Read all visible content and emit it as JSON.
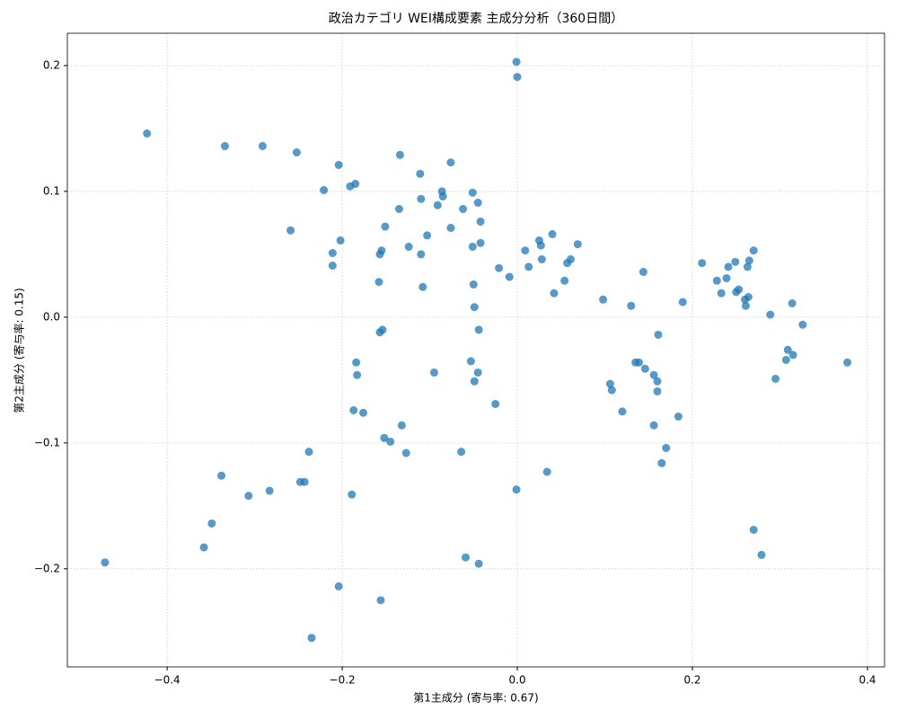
{
  "chart_data": {
    "type": "scatter",
    "title": "政治カテゴリ WEI構成要素 主成分分析（360日間）",
    "x_label": "第1主成分 (寄与率: 0.67)",
    "y_label": "第2主成分 (寄与率: 0.15)",
    "color": "#1f77b4",
    "grid": true,
    "xlim": [
      -0.514,
      0.4195
    ],
    "ylim": [
      -0.278,
      0.2257
    ],
    "xticks": [
      {
        "value": -0.4,
        "label": "−0.4"
      },
      {
        "value": -0.2,
        "label": "−0.2"
      },
      {
        "value": 0,
        "label": "0.0"
      },
      {
        "value": 0.2,
        "label": "0.2"
      },
      {
        "value": 0.4,
        "label": "0.4"
      }
    ],
    "yticks": [
      {
        "value": -0.2,
        "label": "−0.2"
      },
      {
        "value": -0.1,
        "label": "−0.1"
      },
      {
        "value": 0,
        "label": "0.0"
      },
      {
        "value": 0.1,
        "label": "0.1"
      },
      {
        "value": 0.2,
        "label": "0.2"
      }
    ],
    "x": [
      -0.001,
      0.0,
      -0.423,
      -0.334,
      -0.291,
      -0.252,
      -0.134,
      -0.204,
      -0.076,
      -0.111,
      -0.185,
      -0.191,
      -0.221,
      -0.086,
      -0.051,
      -0.11,
      -0.085,
      -0.045,
      -0.091,
      -0.135,
      -0.062,
      -0.042,
      -0.151,
      -0.076,
      -0.259,
      -0.103,
      -0.202,
      -0.042,
      -0.124,
      -0.051,
      -0.155,
      -0.211,
      -0.157,
      -0.11,
      -0.211,
      -0.021,
      -0.009,
      -0.158,
      -0.108,
      -0.05,
      -0.049,
      -0.154,
      -0.157,
      -0.044,
      -0.184,
      -0.053,
      -0.183,
      -0.095,
      -0.045,
      -0.049,
      -0.187,
      -0.176,
      -0.025,
      -0.132,
      -0.152,
      -0.145,
      -0.238,
      -0.127,
      -0.064,
      -0.338,
      0.034,
      -0.283,
      -0.248,
      -0.243,
      -0.307,
      -0.189,
      -0.001,
      -0.349,
      -0.358,
      -0.471,
      -0.059,
      -0.044,
      -0.204,
      -0.156,
      -0.235,
      0.009,
      0.025,
      0.027,
      0.04,
      0.069,
      0.028,
      0.013,
      0.061,
      0.057,
      0.054,
      0.042,
      0.144,
      0.098,
      0.13,
      0.189,
      0.161,
      0.211,
      0.241,
      0.249,
      0.265,
      0.27,
      0.263,
      0.239,
      0.228,
      0.253,
      0.25,
      0.233,
      0.264,
      0.26,
      0.261,
      0.289,
      0.314,
      0.326,
      0.309,
      0.315,
      0.307,
      0.377,
      0.295,
      0.139,
      0.135,
      0.146,
      0.156,
      0.16,
      0.106,
      0.108,
      0.16,
      0.12,
      0.184,
      0.156,
      0.17,
      0.165,
      0.27,
      0.279
    ],
    "values": [
      0.203,
      0.191,
      0.146,
      0.136,
      0.136,
      0.131,
      0.129,
      0.121,
      0.123,
      0.114,
      0.106,
      0.104,
      0.101,
      0.1,
      0.099,
      0.094,
      0.096,
      0.091,
      0.089,
      0.086,
      0.086,
      0.076,
      0.072,
      0.071,
      0.069,
      0.065,
      0.061,
      0.059,
      0.056,
      0.056,
      0.053,
      0.051,
      0.05,
      0.05,
      0.041,
      0.039,
      0.032,
      0.028,
      0.024,
      0.026,
      0.008,
      -0.01,
      -0.012,
      -0.01,
      -0.036,
      -0.035,
      -0.046,
      -0.044,
      -0.044,
      -0.051,
      -0.074,
      -0.076,
      -0.069,
      -0.086,
      -0.096,
      -0.099,
      -0.107,
      -0.108,
      -0.107,
      -0.126,
      -0.123,
      -0.138,
      -0.131,
      -0.131,
      -0.142,
      -0.141,
      -0.137,
      -0.164,
      -0.183,
      -0.195,
      -0.191,
      -0.196,
      -0.214,
      -0.225,
      -0.255,
      0.053,
      0.061,
      0.057,
      0.066,
      0.058,
      0.046,
      0.04,
      0.046,
      0.043,
      0.029,
      0.019,
      0.036,
      0.014,
      0.009,
      0.012,
      -0.014,
      0.043,
      0.04,
      0.044,
      0.045,
      0.053,
      0.04,
      0.031,
      0.029,
      0.022,
      0.02,
      0.019,
      0.016,
      0.014,
      0.009,
      0.002,
      0.011,
      -0.006,
      -0.026,
      -0.03,
      -0.034,
      -0.036,
      -0.049,
      -0.036,
      -0.036,
      -0.041,
      -0.046,
      -0.051,
      -0.053,
      -0.058,
      -0.059,
      -0.075,
      -0.079,
      -0.086,
      -0.104,
      -0.116,
      -0.169,
      -0.189
    ]
  }
}
